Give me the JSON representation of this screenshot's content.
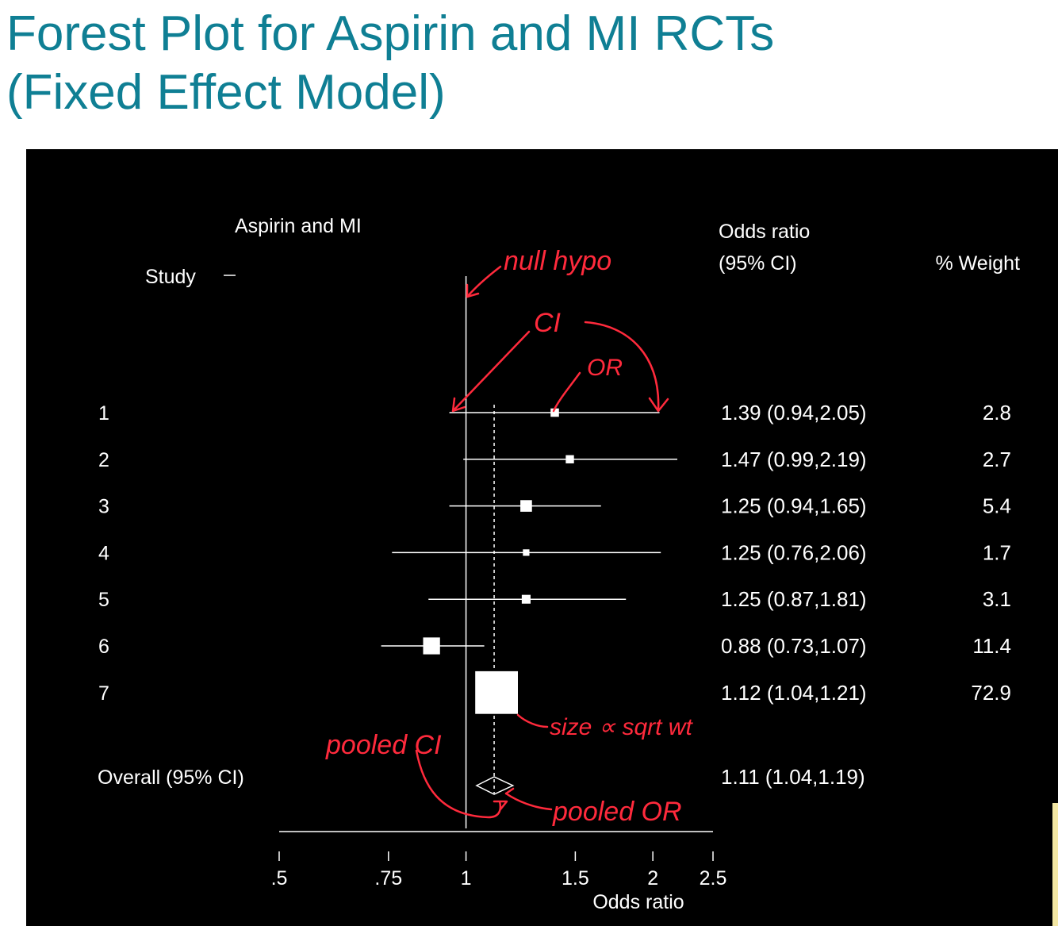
{
  "slide": {
    "title_line1": "Forest Plot for Aspirin and MI RCTs",
    "title_line2": "(Fixed Effect Model)"
  },
  "colors": {
    "title": "#0f7f94",
    "panel_background": "#000000",
    "plot_ink": "#ffffff",
    "annotation_ink": "#ff2a3c"
  },
  "chart_data": {
    "type": "forest",
    "title": "Aspirin and MI",
    "study_header": "Study",
    "or_header_line1": "Odds ratio",
    "or_header_line2": "(95% CI)",
    "weight_header": "% Weight",
    "xlabel": "Odds ratio",
    "x_scale": "log",
    "x_ticks": [
      {
        "value": 0.5,
        "label": ".5"
      },
      {
        "value": 0.75,
        "label": ".75"
      },
      {
        "value": 1,
        "label": "1"
      },
      {
        "value": 1.5,
        "label": "1.5"
      },
      {
        "value": 2,
        "label": "2"
      },
      {
        "value": 2.5,
        "label": "2.5"
      }
    ],
    "null_value": 1,
    "studies": [
      {
        "label": "1",
        "or": 1.39,
        "lo": 0.94,
        "hi": 2.05,
        "or_text": "1.39 (0.94,2.05)",
        "weight": 2.8,
        "weight_text": "2.8"
      },
      {
        "label": "2",
        "or": 1.47,
        "lo": 0.99,
        "hi": 2.19,
        "or_text": "1.47 (0.99,2.19)",
        "weight": 2.7,
        "weight_text": "2.7"
      },
      {
        "label": "3",
        "or": 1.25,
        "lo": 0.94,
        "hi": 1.65,
        "or_text": "1.25 (0.94,1.65)",
        "weight": 5.4,
        "weight_text": "5.4"
      },
      {
        "label": "4",
        "or": 1.25,
        "lo": 0.76,
        "hi": 2.06,
        "or_text": "1.25 (0.76,2.06)",
        "weight": 1.7,
        "weight_text": "1.7"
      },
      {
        "label": "5",
        "or": 1.25,
        "lo": 0.87,
        "hi": 1.81,
        "or_text": "1.25 (0.87,1.81)",
        "weight": 3.1,
        "weight_text": "3.1"
      },
      {
        "label": "6",
        "or": 0.88,
        "lo": 0.73,
        "hi": 1.07,
        "or_text": "0.88 (0.73,1.07)",
        "weight": 11.4,
        "weight_text": "11.4"
      },
      {
        "label": "7",
        "or": 1.12,
        "lo": 1.04,
        "hi": 1.21,
        "or_text": "1.12 (1.04,1.21)",
        "weight": 72.9,
        "weight_text": "72.9"
      }
    ],
    "overall": {
      "label": "Overall (95% CI)",
      "or": 1.11,
      "lo": 1.04,
      "hi": 1.19,
      "or_text": "1.11 (1.04,1.19)"
    }
  },
  "annotations": {
    "null_hypo": "null hypo",
    "ci": "CI",
    "or": "OR",
    "pooled_ci": "pooled CI",
    "pooled_or": "pooled OR",
    "size_note": "size ∝ sqrt wt"
  }
}
